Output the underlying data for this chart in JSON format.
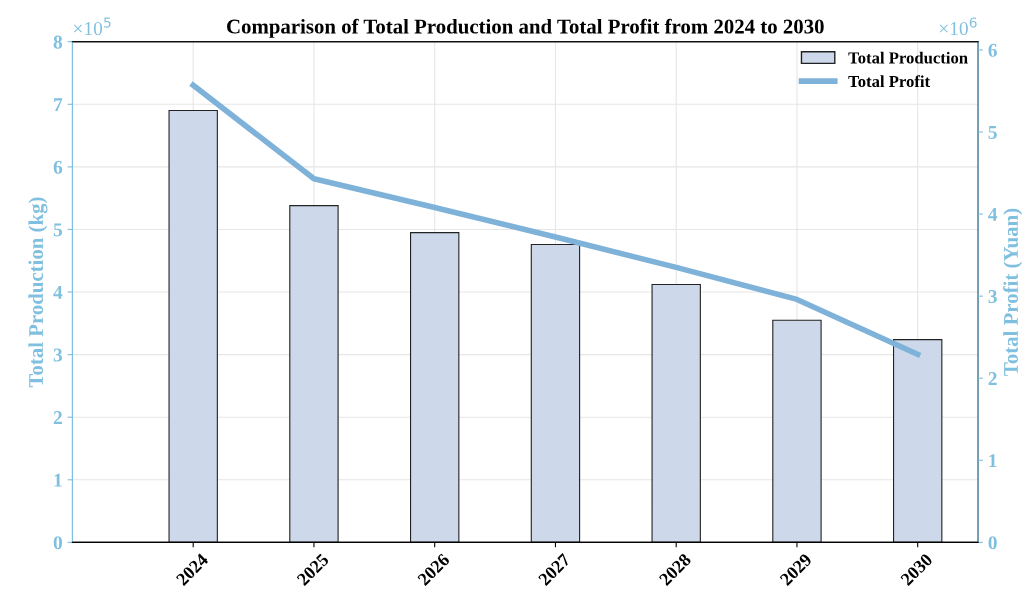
{
  "chart_data": {
    "type": "bar",
    "title": "Comparison of Total Production and Total Profit from 2024 to 2030",
    "categories": [
      "2024",
      "2025",
      "2026",
      "2027",
      "2028",
      "2029",
      "2030"
    ],
    "series": [
      {
        "name": "Total Production",
        "color": "#cdd8ea",
        "values": [
          6.9,
          5.38,
          4.95,
          4.76,
          4.12,
          3.55,
          3.24
        ]
      },
      {
        "name": "Total Profit",
        "type": "line",
        "axis": "y2",
        "color": "#7fb2d9",
        "values": [
          5.57,
          4.43,
          4.08,
          3.72,
          3.35,
          2.96,
          2.29
        ]
      }
    ],
    "ylabel": "Total Production (kg)",
    "y2label": "Total Profit (Yuan)",
    "ylim": [
      0,
      8
    ],
    "yticks": [
      0,
      1,
      2,
      3,
      4,
      5,
      6,
      7,
      8
    ],
    "y2lim": [
      0,
      6.1
    ],
    "y2ticks": [
      0,
      1,
      2,
      3,
      4,
      5,
      6
    ],
    "annotations": [
      "×10$^{5}$",
      "×10$^{6}$"
    ],
    "grid": true,
    "legend": "top right"
  }
}
